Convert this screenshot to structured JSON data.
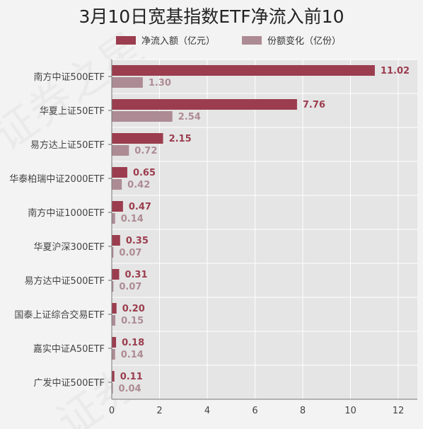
{
  "chart_data": {
    "type": "bar",
    "orientation": "horizontal",
    "title": "3月10日宽基指数ETF净流入前10",
    "categories": [
      "南方中证500ETF",
      "华夏上证50ETF",
      "易方达上证50ETF",
      "华泰柏瑞中证2000ETF",
      "南方中证1000ETF",
      "华夏沪深300ETF",
      "易方达中证500ETF",
      "国泰上证综合交易ETF",
      "嘉实中证A50ETF",
      "广发中证500ETF"
    ],
    "series": [
      {
        "name": "净流入额（亿元）",
        "color": "#9b3d4e",
        "values": [
          11.02,
          7.76,
          2.15,
          0.65,
          0.47,
          0.35,
          0.31,
          0.2,
          0.18,
          0.11
        ],
        "labels": [
          "11.02",
          "7.76",
          "2.15",
          "0.65",
          "0.47",
          "0.35",
          "0.31",
          "0.20",
          "0.18",
          "0.11"
        ]
      },
      {
        "name": "份额变化（亿份）",
        "color": "#ad8b94",
        "values": [
          1.3,
          2.54,
          0.72,
          0.42,
          0.14,
          0.07,
          0.07,
          0.15,
          0.14,
          0.04
        ],
        "labels": [
          "1.30",
          "2.54",
          "0.72",
          "0.42",
          "0.14",
          "0.07",
          "0.07",
          "0.15",
          "0.14",
          "0.04"
        ]
      }
    ],
    "xlim": [
      0,
      12.8
    ],
    "xticks": [
      "0",
      "2",
      "4",
      "6",
      "8",
      "10",
      "12"
    ],
    "xtick_values": [
      0,
      2,
      4,
      6,
      8,
      10,
      12
    ],
    "grid": true,
    "legend_position": "top-center"
  },
  "watermark": "证券之星",
  "colors": {
    "plot_bg": "#e5e5e5",
    "page_bg": "#f3f3f3",
    "grid": "#ffffff"
  }
}
